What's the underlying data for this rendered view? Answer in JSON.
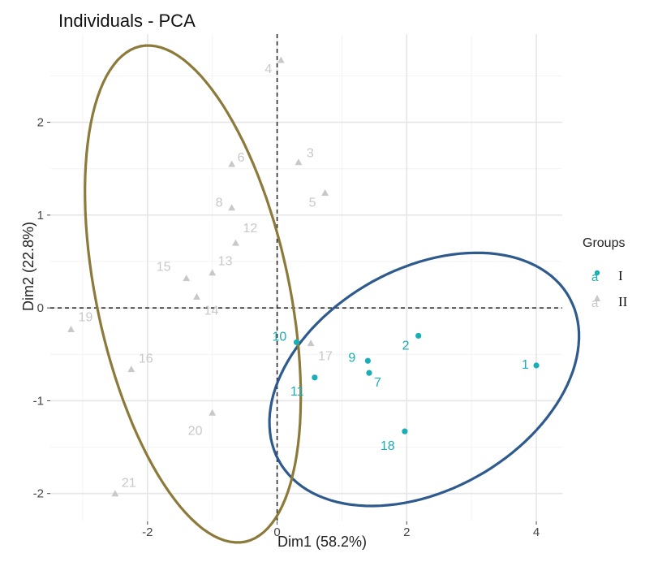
{
  "chart_data": {
    "type": "scatter",
    "title": "Individuals - PCA",
    "xlabel": "Dim1 (58.2%)",
    "ylabel": "Dim2 (22.8%)",
    "xlim": [
      -3.5,
      4.4
    ],
    "ylim": [
      -2.3,
      2.95
    ],
    "x_ticks": [
      -2,
      0,
      2,
      4
    ],
    "y_ticks": [
      -2,
      -1,
      0,
      1,
      2
    ],
    "x_tick_labels": [
      "-2",
      "0",
      "2",
      "4"
    ],
    "y_tick_labels": [
      "-2",
      "-1",
      "0",
      "1",
      "2"
    ],
    "grid": true,
    "legend_position": "right",
    "legend": {
      "title": "Groups",
      "entries": [
        {
          "key_glyph": "a",
          "label": "I"
        },
        {
          "key_glyph": "a",
          "label": "II"
        }
      ]
    },
    "groups": [
      {
        "label": "I",
        "color": "#1AAEB5",
        "ellipse_color": "#2E5A8E",
        "marker": "circle",
        "points": [
          {
            "id": "1",
            "x": 4.0,
            "y": -0.62
          },
          {
            "id": "2",
            "x": 2.18,
            "y": -0.3
          },
          {
            "id": "7",
            "x": 1.42,
            "y": -0.7
          },
          {
            "id": "9",
            "x": 1.4,
            "y": -0.57
          },
          {
            "id": "10",
            "x": 0.3,
            "y": -0.37
          },
          {
            "id": "11",
            "x": 0.58,
            "y": -0.75
          },
          {
            "id": "18",
            "x": 1.97,
            "y": -1.33
          }
        ],
        "ellipse": {
          "cx": 2.27,
          "cy": -0.77,
          "rx": 2.45,
          "ry": 1.25,
          "angle_deg": 15
        }
      },
      {
        "label": "II",
        "color": "#C8C8C8",
        "ellipse_color": "#8B7A3A",
        "marker": "triangle",
        "points": [
          {
            "id": "3",
            "x": 0.33,
            "y": 1.57
          },
          {
            "id": "4",
            "x": 0.06,
            "y": 2.67
          },
          {
            "id": "5",
            "x": 0.74,
            "y": 1.24
          },
          {
            "id": "6",
            "x": -0.7,
            "y": 1.55
          },
          {
            "id": "8",
            "x": -0.7,
            "y": 1.08
          },
          {
            "id": "12",
            "x": -0.64,
            "y": 0.7
          },
          {
            "id": "13",
            "x": -1.0,
            "y": 0.38
          },
          {
            "id": "14",
            "x": -1.24,
            "y": 0.12
          },
          {
            "id": "15",
            "x": -1.4,
            "y": 0.32
          },
          {
            "id": "16",
            "x": -2.25,
            "y": -0.66
          },
          {
            "id": "17",
            "x": 0.52,
            "y": -0.38
          },
          {
            "id": "19",
            "x": -3.18,
            "y": -0.23
          },
          {
            "id": "20",
            "x": -1.0,
            "y": -1.13
          },
          {
            "id": "21",
            "x": -2.5,
            "y": -2.0
          }
        ],
        "ellipse": {
          "cx": -1.3,
          "cy": 0.15,
          "rx": 2.8,
          "ry": 1.45,
          "angle_deg": 110
        }
      }
    ]
  }
}
